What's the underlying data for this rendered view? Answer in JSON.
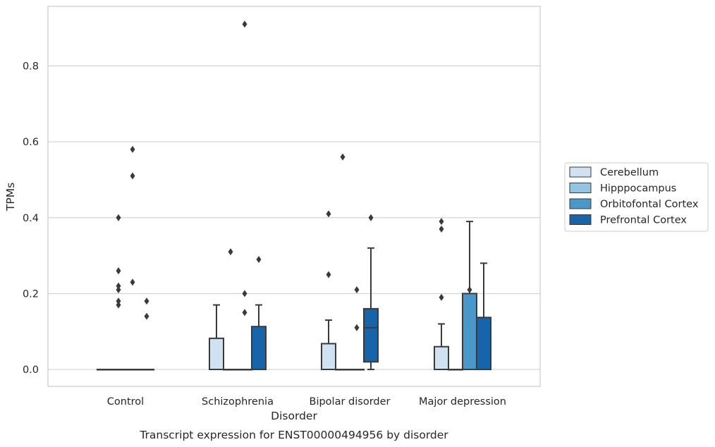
{
  "chart_data": {
    "type": "box",
    "title": "",
    "caption": "Transcript expression for ENST00000494956 by disorder",
    "xlabel": "Disorder",
    "ylabel": "TPMs",
    "ylim": [
      -0.045,
      0.955
    ],
    "yticks": [
      0.0,
      0.2,
      0.4,
      0.6,
      0.8
    ],
    "ytick_labels": [
      "0.0",
      "0.2",
      "0.4",
      "0.6",
      "0.8"
    ],
    "grid": "horizontal",
    "legend_position": "right",
    "categories": [
      "Control",
      "Schizophrenia",
      "Bipolar disorder",
      "Major depression"
    ],
    "series": [
      {
        "name": "Cerebellum",
        "color": "#d0e1f2",
        "boxes": [
          {
            "q1": 0,
            "median": 0,
            "q3": 0,
            "whislo": 0,
            "whishi": 0,
            "fliers": []
          },
          {
            "q1": 0,
            "median": 0,
            "q3": 0.082,
            "whislo": 0,
            "whishi": 0.17,
            "fliers": []
          },
          {
            "q1": 0,
            "median": 0,
            "q3": 0.068,
            "whislo": 0,
            "whishi": 0.13,
            "fliers": [
              0.25,
              0.41
            ]
          },
          {
            "q1": 0,
            "median": 0,
            "q3": 0.06,
            "whislo": 0,
            "whishi": 0.12,
            "fliers": [
              0.19,
              0.37,
              0.39
            ]
          }
        ]
      },
      {
        "name": "Hipppocampus",
        "color": "#94c4df",
        "boxes": [
          {
            "q1": 0,
            "median": 0,
            "q3": 0,
            "whislo": 0,
            "whishi": 0,
            "fliers": [
              0.17,
              0.21,
              0.26,
              0.18,
              0.22,
              0.4
            ]
          },
          {
            "q1": 0,
            "median": 0,
            "q3": 0,
            "whislo": 0,
            "whishi": 0,
            "fliers": [
              0.31
            ]
          },
          {
            "q1": 0,
            "median": 0,
            "q3": 0,
            "whislo": 0,
            "whishi": 0,
            "fliers": [
              0.56
            ]
          },
          {
            "q1": 0,
            "median": 0,
            "q3": 0,
            "whislo": 0,
            "whishi": 0,
            "fliers": []
          }
        ]
      },
      {
        "name": "Orbitofontal Cortex",
        "color": "#4a98c9",
        "boxes": [
          {
            "q1": 0,
            "median": 0,
            "q3": 0,
            "whislo": 0,
            "whishi": 0,
            "fliers": [
              0.23,
              0.51,
              0.58
            ]
          },
          {
            "q1": 0,
            "median": 0,
            "q3": 0,
            "whislo": 0,
            "whishi": 0,
            "fliers": [
              0.15,
              0.2,
              0.91
            ]
          },
          {
            "q1": 0,
            "median": 0,
            "q3": 0,
            "whislo": 0,
            "whishi": 0,
            "fliers": [
              0.11,
              0.21
            ]
          },
          {
            "q1": 0,
            "median": 0,
            "q3": 0.2,
            "whislo": 0,
            "whishi": 0.39,
            "fliers": [
              0.21
            ]
          }
        ]
      },
      {
        "name": "Prefrontal Cortex",
        "color": "#1764ab",
        "boxes": [
          {
            "q1": 0,
            "median": 0,
            "q3": 0,
            "whislo": 0,
            "whishi": 0,
            "fliers": [
              0.14,
              0.18
            ]
          },
          {
            "q1": 0,
            "median": 0,
            "q3": 0.113,
            "whislo": 0,
            "whishi": 0.17,
            "fliers": [
              0.29
            ]
          },
          {
            "q1": 0.02,
            "median": 0.11,
            "q3": 0.16,
            "whislo": 0,
            "whishi": 0.32,
            "fliers": [
              0.4
            ]
          },
          {
            "q1": 0,
            "median": 0,
            "q3": 0.137,
            "whislo": 0,
            "whishi": 0.28,
            "fliers": []
          }
        ]
      }
    ]
  }
}
